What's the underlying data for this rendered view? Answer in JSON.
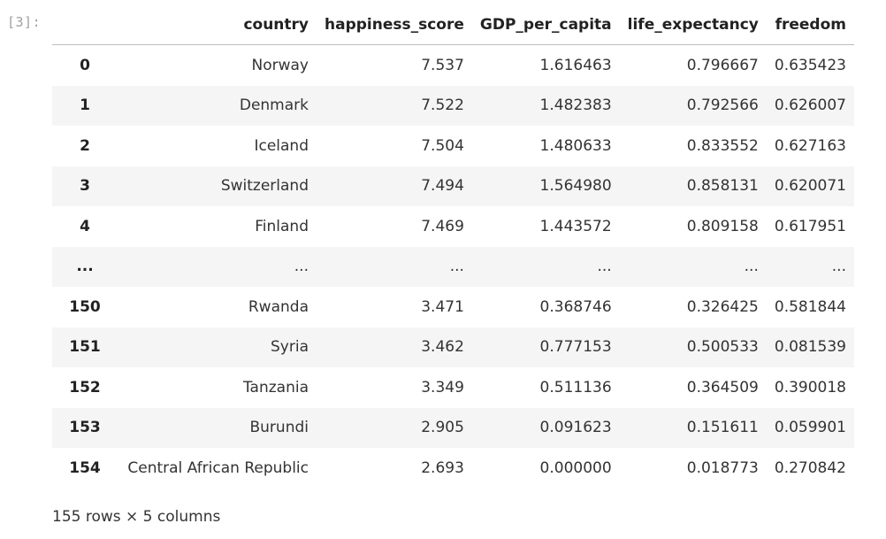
{
  "cell": {
    "prompt": "[3]:"
  },
  "table": {
    "columns": [
      "",
      "country",
      "happiness_score",
      "GDP_per_capita",
      "life_expectancy",
      "freedom"
    ],
    "rows": [
      {
        "index": "0",
        "country": "Norway",
        "happiness_score": "7.537",
        "GDP_per_capita": "1.616463",
        "life_expectancy": "0.796667",
        "freedom": "0.635423"
      },
      {
        "index": "1",
        "country": "Denmark",
        "happiness_score": "7.522",
        "GDP_per_capita": "1.482383",
        "life_expectancy": "0.792566",
        "freedom": "0.626007"
      },
      {
        "index": "2",
        "country": "Iceland",
        "happiness_score": "7.504",
        "GDP_per_capita": "1.480633",
        "life_expectancy": "0.833552",
        "freedom": "0.627163"
      },
      {
        "index": "3",
        "country": "Switzerland",
        "happiness_score": "7.494",
        "GDP_per_capita": "1.564980",
        "life_expectancy": "0.858131",
        "freedom": "0.620071"
      },
      {
        "index": "4",
        "country": "Finland",
        "happiness_score": "7.469",
        "GDP_per_capita": "1.443572",
        "life_expectancy": "0.809158",
        "freedom": "0.617951"
      },
      {
        "index": "...",
        "country": "...",
        "happiness_score": "...",
        "GDP_per_capita": "...",
        "life_expectancy": "...",
        "freedom": "..."
      },
      {
        "index": "150",
        "country": "Rwanda",
        "happiness_score": "3.471",
        "GDP_per_capita": "0.368746",
        "life_expectancy": "0.326425",
        "freedom": "0.581844"
      },
      {
        "index": "151",
        "country": "Syria",
        "happiness_score": "3.462",
        "GDP_per_capita": "0.777153",
        "life_expectancy": "0.500533",
        "freedom": "0.081539"
      },
      {
        "index": "152",
        "country": "Tanzania",
        "happiness_score": "3.349",
        "GDP_per_capita": "0.511136",
        "life_expectancy": "0.364509",
        "freedom": "0.390018"
      },
      {
        "index": "153",
        "country": "Burundi",
        "happiness_score": "2.905",
        "GDP_per_capita": "0.091623",
        "life_expectancy": "0.151611",
        "freedom": "0.059901"
      },
      {
        "index": "154",
        "country": "Central African Republic",
        "happiness_score": "2.693",
        "GDP_per_capita": "0.000000",
        "life_expectancy": "0.018773",
        "freedom": "0.270842"
      }
    ]
  },
  "shape_text": "155 rows × 5 columns"
}
